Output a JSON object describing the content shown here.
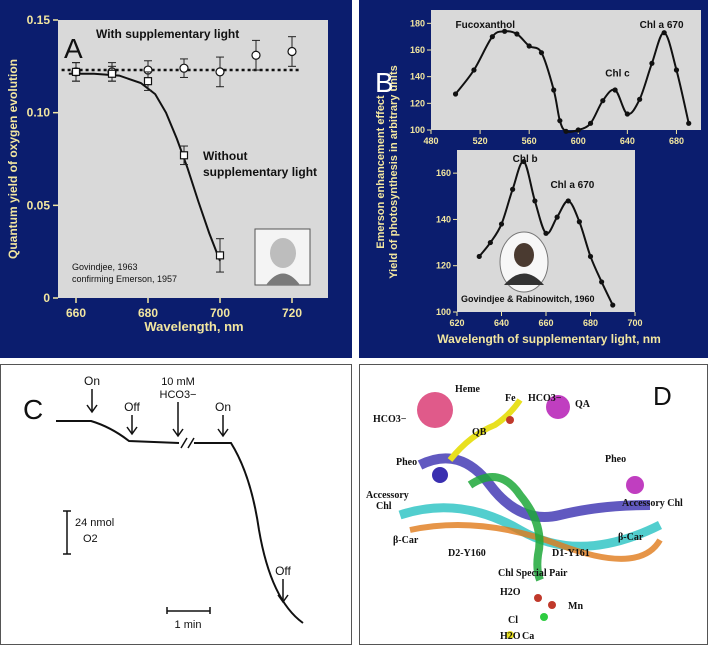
{
  "panel_a": {
    "letter": "A",
    "annotations": [
      "With supplementary light",
      "Without",
      "supplementary light",
      "Govindjee, 1963",
      "confirming Emerson, 1957"
    ],
    "chart_data": {
      "type": "line",
      "xlabel": "Wavelength, nm",
      "ylabel": "Quantum yield of oxygen evolution",
      "xlim": [
        655,
        730
      ],
      "ylim": [
        0,
        0.15
      ],
      "xticks": [
        "660",
        "680",
        "700",
        "720"
      ],
      "xtick_values": [
        660,
        680,
        700,
        720
      ],
      "yticks": [
        "0",
        "0.05",
        "0.10",
        "0.15"
      ],
      "ytick_values": [
        0,
        0.05,
        0.1,
        0.15
      ],
      "series": [
        {
          "name": "With supplementary light",
          "style": "dotted",
          "x": [
            660,
            670,
            680,
            690,
            700,
            710,
            720
          ],
          "y": [
            0.122,
            0.122,
            0.123,
            0.124,
            0.122,
            0.131,
            0.133
          ],
          "err": [
            0.005,
            0.005,
            0.005,
            0.005,
            0.008,
            0.008,
            0.008
          ]
        },
        {
          "name": "Without supplementary light",
          "style": "solid",
          "x": [
            660,
            670,
            680,
            690,
            700
          ],
          "y": [
            0.122,
            0.121,
            0.117,
            0.077,
            0.023
          ],
          "err": [
            0.005,
            0.004,
            0.005,
            0.005,
            0.009
          ]
        }
      ],
      "fit_without": {
        "x": [
          658,
          665,
          672,
          678,
          682,
          685,
          688,
          691,
          694,
          697,
          700
        ],
        "y": [
          0.121,
          0.121,
          0.12,
          0.116,
          0.11,
          0.1,
          0.086,
          0.07,
          0.052,
          0.035,
          0.02
        ]
      },
      "fit_with": {
        "x": [
          656,
          722
        ],
        "y": [
          0.123,
          0.123
        ]
      }
    }
  },
  "panel_b": {
    "letter": "B",
    "ylabel_line1": "Emerson enhancement effect",
    "ylabel_line2": "Yield of photosynthesis in arbitrary units",
    "xlabel": "Wavelength of supplementary light, nm",
    "credit": "Govindjee & Rabinowitch, 1960",
    "chart_data": [
      {
        "type": "line",
        "xlim": [
          480,
          700
        ],
        "ylim": [
          100,
          190
        ],
        "xticks": [
          "480",
          "520",
          "560",
          "600",
          "640",
          "680"
        ],
        "xtick_values": [
          480,
          520,
          560,
          600,
          640,
          680
        ],
        "yticks": [
          "100",
          "120",
          "140",
          "160",
          "180"
        ],
        "ytick_values": [
          100,
          120,
          140,
          160,
          180
        ],
        "labels": [
          {
            "text": "Fucoxanthol",
            "x": 500
          },
          {
            "text": "Chl c",
            "x": 622
          },
          {
            "text": "Chl a 670",
            "x": 650
          }
        ],
        "series": [
          {
            "x": [
              500,
              515,
              530,
              540,
              550,
              560,
              570,
              580,
              585,
              590,
              600,
              610,
              620,
              630,
              640,
              650,
              660,
              670,
              680,
              690
            ],
            "y": [
              127,
              145,
              170,
              174,
              172,
              163,
              158,
              130,
              107,
              99,
              100,
              105,
              122,
              130,
              112,
              123,
              150,
              173,
              145,
              105
            ]
          }
        ]
      },
      {
        "type": "line",
        "xlim": [
          620,
          700
        ],
        "ylim": [
          100,
          170
        ],
        "xticks": [
          "620",
          "640",
          "660",
          "680",
          "700"
        ],
        "xtick_values": [
          620,
          640,
          660,
          680,
          700
        ],
        "yticks": [
          "100",
          "120",
          "140",
          "160"
        ],
        "ytick_values": [
          100,
          120,
          140,
          160
        ],
        "labels": [
          {
            "text": "Chl b",
            "x": 645
          },
          {
            "text": "Chl a 670",
            "x": 662
          }
        ],
        "series": [
          {
            "x": [
              630,
              635,
              640,
              645,
              650,
              655,
              660,
              665,
              670,
              675,
              680,
              685,
              690
            ],
            "y": [
              124,
              130,
              138,
              153,
              165,
              148,
              134,
              141,
              148,
              139,
              124,
              113,
              103
            ]
          }
        ]
      }
    ]
  },
  "panel_c": {
    "letter": "C",
    "labels": {
      "on1": "On",
      "off1": "Off",
      "hco3_conc": "10 mM",
      "hco3": "HCO3−",
      "on2": "On",
      "off2": "Off"
    },
    "scale_y": "24 nmol",
    "scale_y_unit": "O2",
    "scale_x": "1 min"
  },
  "panel_d": {
    "letter": "D",
    "labels": [
      "Heme",
      "Fe",
      "HCO3−",
      "HCO3−",
      "QB",
      "QA",
      "Pheo",
      "Pheo",
      "Accessory",
      "Chl",
      "Accessory Chl",
      "β-Car",
      "β-Car",
      "D2-Y160",
      "D1-Y161",
      "Chl Special Pair",
      "H2O",
      "Mn",
      "Cl",
      "H2O",
      "Ca"
    ]
  }
}
